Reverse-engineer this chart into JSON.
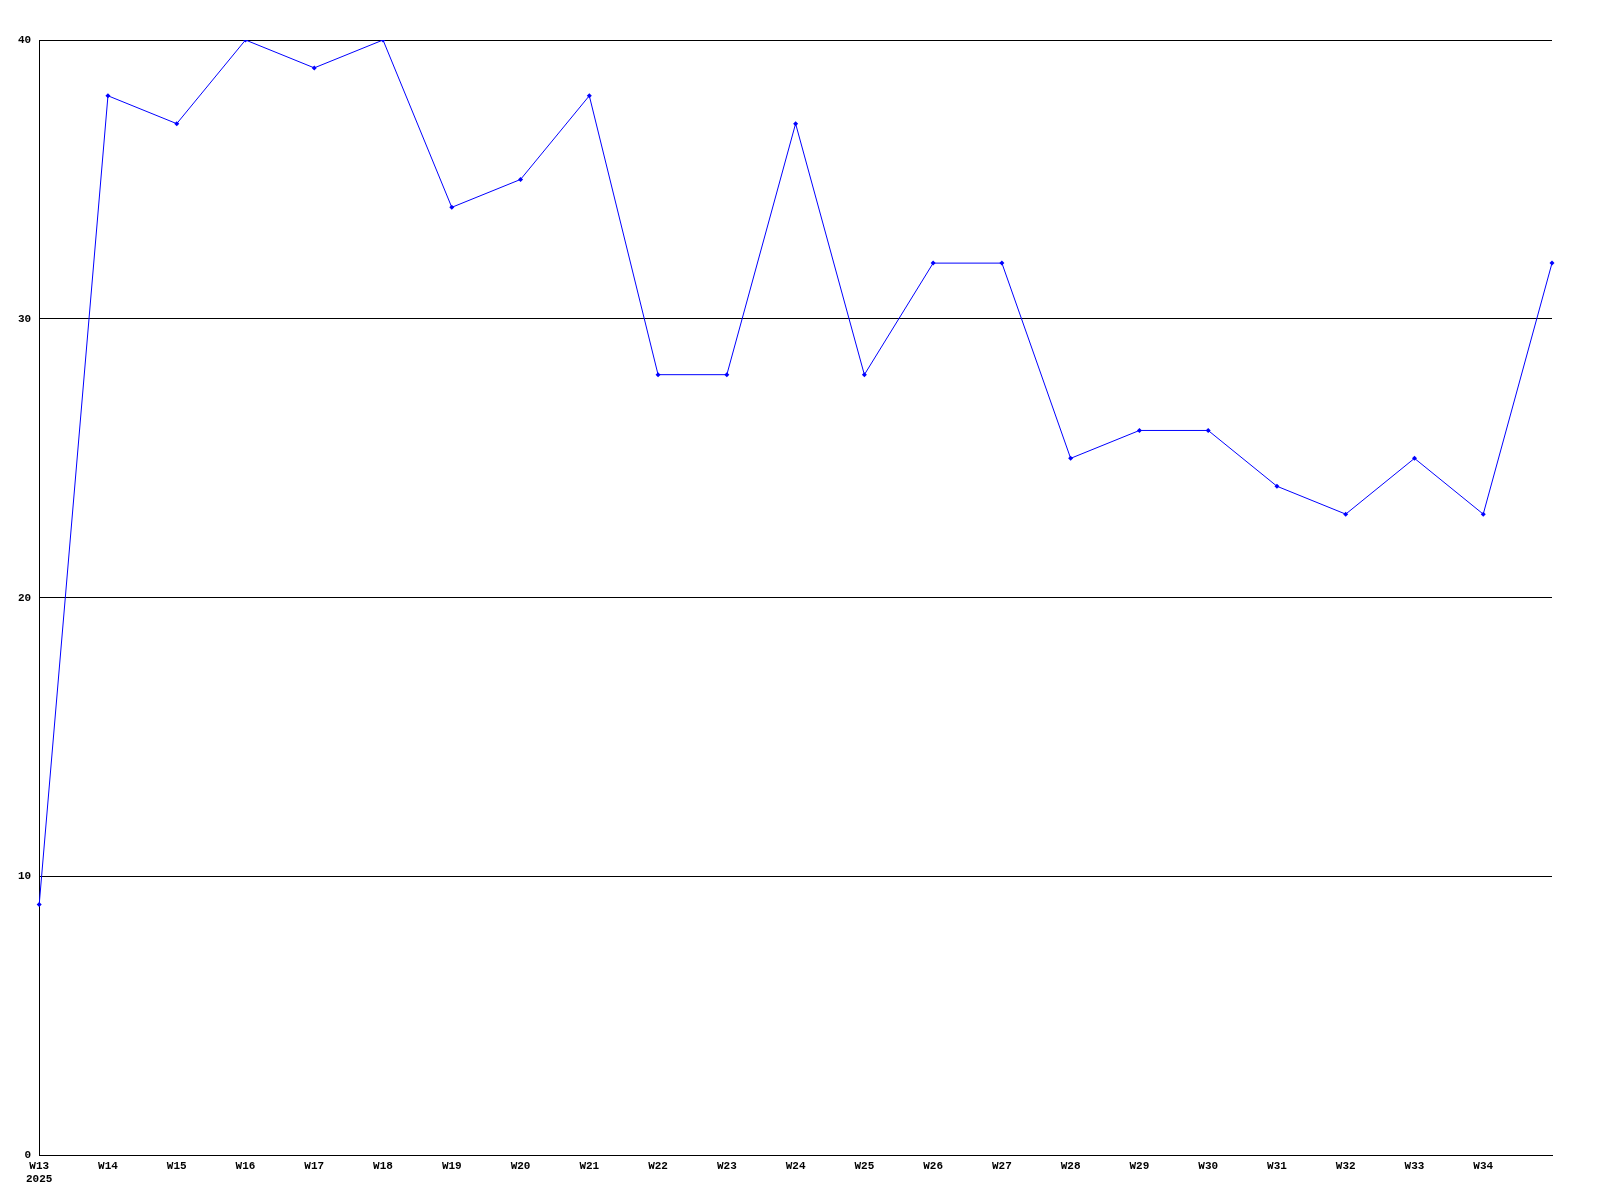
{
  "chart_data": {
    "type": "line",
    "categories": [
      "W13\n2025",
      "W14",
      "W15",
      "W16",
      "W17",
      "W18",
      "W19",
      "W20",
      "W21",
      "W22",
      "W23",
      "W24",
      "W25",
      "W26",
      "W27",
      "W28",
      "W29",
      "W30",
      "W31",
      "W32",
      "W33",
      "W34",
      null
    ],
    "series": [
      {
        "color": "#0000ff",
        "values": [
          9,
          38,
          37,
          40,
          39,
          40,
          34,
          35,
          38,
          28,
          28,
          37,
          28,
          32,
          32,
          25,
          26,
          26,
          24,
          23,
          25,
          23,
          32
        ]
      }
    ],
    "ylim": [
      0,
      40
    ],
    "yticks": [
      0,
      10,
      20,
      30,
      40
    ],
    "grid": "y",
    "legend": false,
    "marker": "diamond",
    "line_style": "solid"
  }
}
